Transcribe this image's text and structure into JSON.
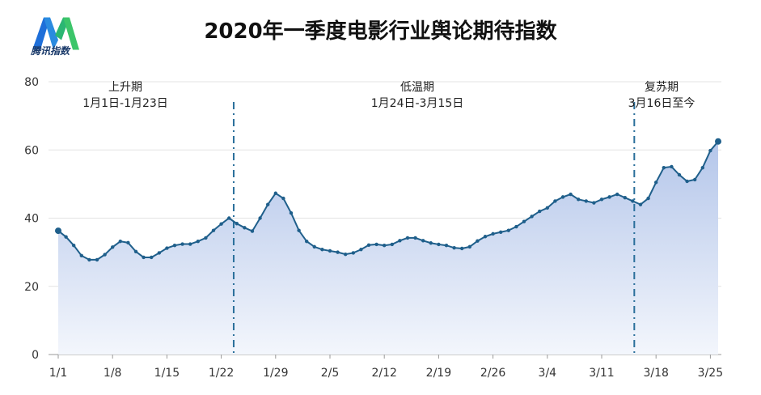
{
  "logo": {
    "text": "腾讯指数",
    "colors": [
      "#1e6fd9",
      "#2bb673"
    ]
  },
  "chart_data": {
    "type": "area",
    "title": "2020年一季度电影行业舆论期待指数",
    "ylim": [
      0,
      80
    ],
    "yticks": [
      0,
      20,
      40,
      60,
      80
    ],
    "xtick_labels": [
      "1/1",
      "1/8",
      "1/15",
      "1/22",
      "1/29",
      "2/5",
      "2/12",
      "2/19",
      "2/26",
      "3/4",
      "3/11",
      "3/18",
      "3/25"
    ],
    "start_date": "2020-01-01",
    "grid": "horizontal",
    "line_color": "#1f5f8b",
    "fill_colors": [
      "#b4c6ea",
      "#f3f6fc"
    ],
    "values": [
      36.3,
      34.5,
      32,
      29,
      27.8,
      27.8,
      29.3,
      31.5,
      33.2,
      32.8,
      30.2,
      28.5,
      28.5,
      29.8,
      31.2,
      32,
      32.4,
      32.4,
      33.2,
      34.2,
      36.4,
      38.3,
      40,
      38.4,
      37.2,
      36.2,
      40,
      44,
      47.3,
      45.8,
      41.5,
      36.4,
      33.2,
      31.6,
      30.8,
      30.4,
      30,
      29.4,
      29.8,
      30.8,
      32.1,
      32.3,
      32,
      32.3,
      33.4,
      34.2,
      34.2,
      33.4,
      32.7,
      32.3,
      32,
      31.3,
      31.1,
      31.6,
      33.3,
      34.6,
      35.4,
      35.9,
      36.4,
      37.5,
      39,
      40.5,
      42,
      43,
      45,
      46.2,
      47,
      45.5,
      45,
      44.5,
      45.5,
      46.2,
      47,
      46,
      45,
      44,
      45.8,
      50.5,
      54.8,
      55.1,
      52.7,
      50.8,
      51.3,
      54.8,
      59.8,
      62.5
    ],
    "dividers": [
      "1/23-1/24",
      "3/15-3/16"
    ],
    "annotations": [
      {
        "name": "上升期",
        "range": "1月1日-1月23日"
      },
      {
        "name": "低温期",
        "range": "1月24日-3月15日"
      },
      {
        "name": "复苏期",
        "range": "3月16日至今"
      }
    ]
  }
}
